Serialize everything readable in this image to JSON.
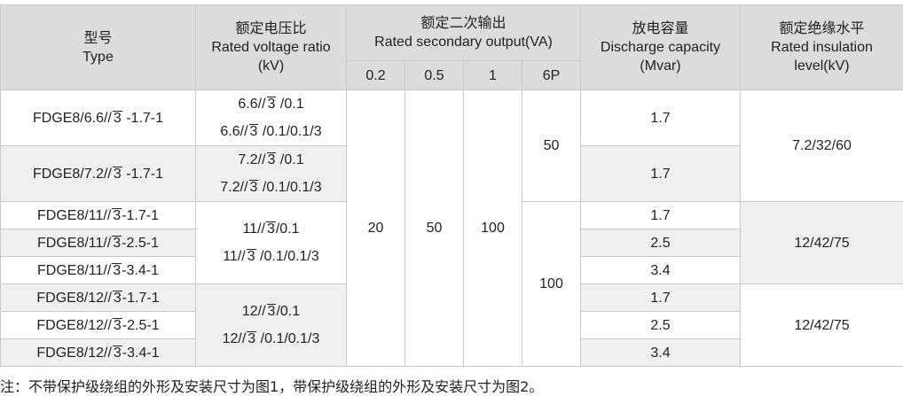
{
  "headers": {
    "type_cn": "型号",
    "type_en": "Type",
    "ratio_cn": "额定电压比",
    "ratio_en": "Rated voltage ratio",
    "ratio_unit": "(kV)",
    "output_cn": "额定二次输出",
    "output_en": "Rated secondary output(VA)",
    "output_cols": [
      "0.2",
      "0.5",
      "1",
      "6P"
    ],
    "disc_cn": "放电容量",
    "disc_en": "Discharge capacity",
    "disc_unit": "(Mvar)",
    "ins_cn": "额定绝缘水平",
    "ins_en": "Rated insulation",
    "ins_unit": "level(kV)"
  },
  "sqrt_symbol": "3",
  "rows": [
    {
      "pre": "FDGE8/6.6//",
      "post": " -1.7-1",
      "disc": "1.7"
    },
    {
      "pre": "FDGE8/7.2//",
      "post": " -1.7-1",
      "disc": "1.7"
    },
    {
      "pre": "FDGE8/11//",
      "post": "-1.7-1",
      "disc": "1.7"
    },
    {
      "pre": "FDGE8/11//",
      "post": "-2.5-1",
      "disc": "2.5"
    },
    {
      "pre": "FDGE8/11//",
      "post": "-3.4-1",
      "disc": "3.4"
    },
    {
      "pre": "FDGE8/12//",
      "post": "-1.7-1",
      "disc": "1.7"
    },
    {
      "pre": "FDGE8/12//",
      "post": "-2.5-1",
      "disc": "2.5"
    },
    {
      "pre": "FDGE8/12//",
      "post": "-3.4-1",
      "disc": "3.4"
    }
  ],
  "ratios": [
    {
      "a_pre": "6.6//",
      "a_post": " /0.1",
      "b_pre": "6.6//",
      "b_post": " /0.1/0.1/3"
    },
    {
      "a_pre": "7.2//",
      "a_post": " /0.1",
      "b_pre": "7.2//",
      "b_post": " /0.1/0.1/3"
    },
    {
      "a_pre": "11//",
      "a_post": "/0.1",
      "b_pre": "11//",
      "b_post": " /0.1/0.1/3"
    },
    {
      "a_pre": "12//",
      "a_post": "/0.1",
      "b_pre": "12//",
      "b_post": " /0.1/0.1/3"
    }
  ],
  "outputs": {
    "c02": "20",
    "c05": "50",
    "c1": "100",
    "c6p_a": "50",
    "c6p_b": "100"
  },
  "insulation": [
    "7.2/32/60",
    "12/42/75",
    "12/42/75"
  ],
  "note": "注：不带保护级绕组的外形及安装尺寸为图1，带保护级绕组的外形及安装尺寸为图2。"
}
